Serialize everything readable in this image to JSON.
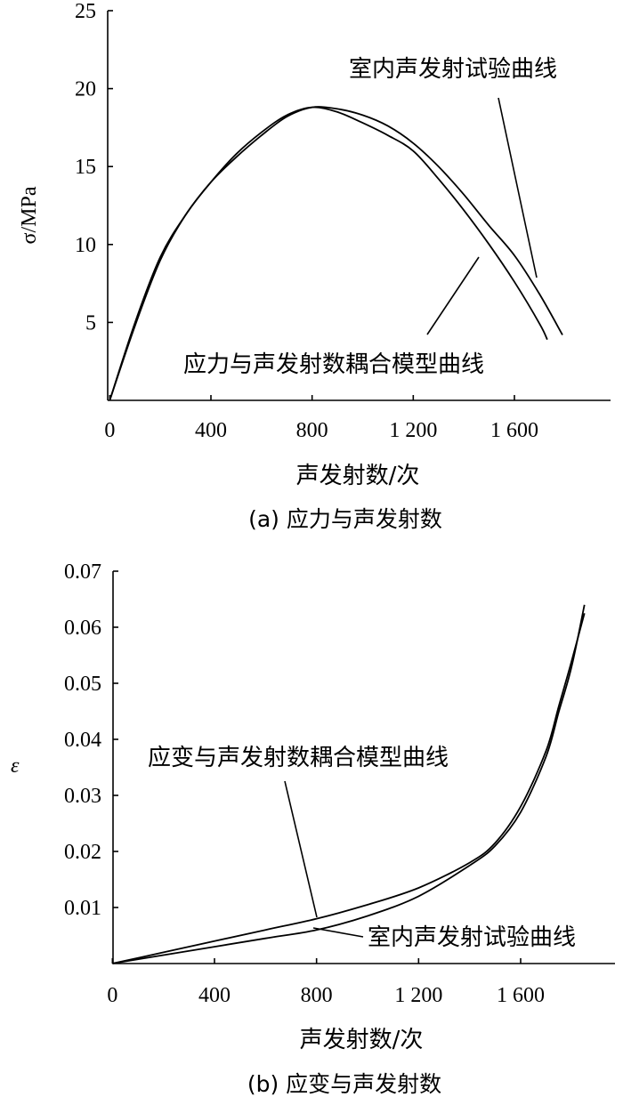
{
  "chart_data": [
    {
      "type": "line",
      "caption": "(a) 应力与声发射数",
      "xlabel": "声发射数/次",
      "ylabel": "σ/MPa",
      "xlim": [
        0,
        2000
      ],
      "ylim": [
        0,
        25
      ],
      "x_ticks": [
        0,
        400,
        800,
        1200,
        1600
      ],
      "x_tick_labels": [
        "0",
        "400",
        "800",
        "1 200",
        "1 600"
      ],
      "y_ticks": [
        5,
        10,
        15,
        20,
        25
      ],
      "y_tick_labels": [
        "5",
        "10",
        "15",
        "20",
        "25"
      ],
      "grid": false,
      "series": [
        {
          "name": "室内声发射试验曲线",
          "x": [
            0,
            100,
            200,
            300,
            400,
            500,
            600,
            700,
            800,
            900,
            1000,
            1100,
            1200,
            1300,
            1400,
            1500,
            1600,
            1700,
            1790
          ],
          "y": [
            0,
            5,
            9.2,
            11.9,
            14,
            15.6,
            17,
            18.2,
            18.8,
            18.7,
            18.3,
            17.6,
            16.5,
            15,
            13.2,
            11.2,
            9.3,
            6.8,
            4.2
          ]
        },
        {
          "name": "应力与声发射数耦合模型曲线",
          "x": [
            0,
            100,
            200,
            300,
            400,
            500,
            600,
            700,
            800,
            900,
            1000,
            1100,
            1200,
            1300,
            1400,
            1500,
            1600,
            1700,
            1730
          ],
          "y": [
            0,
            4.8,
            9,
            11.9,
            14,
            15.8,
            17.2,
            18.3,
            18.8,
            18.5,
            17.8,
            17,
            16,
            14.2,
            12.2,
            10,
            7.6,
            4.9,
            3.9
          ]
        }
      ],
      "annotations": [
        {
          "text": "室内声发射试验曲线",
          "points_to": [
            1690,
            7.8
          ]
        },
        {
          "text": "应力与声发射数耦合模型曲线",
          "points_to": [
            1470,
            10.9
          ]
        }
      ]
    },
    {
      "type": "line",
      "caption": "(b) 应变与声发射数",
      "xlabel": "声发射数/次",
      "ylabel": "ε",
      "xlim": [
        0,
        2000
      ],
      "ylim": [
        0,
        0.07
      ],
      "x_ticks": [
        0,
        400,
        800,
        1200,
        1600
      ],
      "x_tick_labels": [
        "0",
        "400",
        "800",
        "1 200",
        "1 600"
      ],
      "y_ticks": [
        0.01,
        0.02,
        0.03,
        0.04,
        0.05,
        0.06,
        0.07
      ],
      "y_tick_labels": [
        "0.01",
        "0.02",
        "0.03",
        "0.04",
        "0.05",
        "0.06",
        "0.07"
      ],
      "grid": false,
      "series": [
        {
          "name": "室内声发射试验曲线",
          "x": [
            0,
            200,
            400,
            600,
            800,
            1000,
            1200,
            1400,
            1500,
            1600,
            1700,
            1750,
            1800,
            1850
          ],
          "y": [
            0,
            0.0015,
            0.003,
            0.0045,
            0.006,
            0.0085,
            0.012,
            0.0175,
            0.021,
            0.027,
            0.037,
            0.045,
            0.053,
            0.064
          ]
        },
        {
          "name": "应变与声发射数耦合模型曲线",
          "x": [
            0,
            200,
            400,
            600,
            800,
            1000,
            1200,
            1400,
            1500,
            1600,
            1700,
            1750,
            1800,
            1850
          ],
          "y": [
            0,
            0.002,
            0.004,
            0.006,
            0.008,
            0.0105,
            0.0135,
            0.018,
            0.0215,
            0.028,
            0.038,
            0.046,
            0.054,
            0.0625
          ]
        }
      ],
      "annotations": [
        {
          "text": "应变与声发射数耦合模型曲线",
          "points_to": [
            800,
            0.0082
          ]
        },
        {
          "text": "室内声发射试验曲线",
          "points_to": [
            740,
            0.0058
          ]
        }
      ]
    }
  ]
}
